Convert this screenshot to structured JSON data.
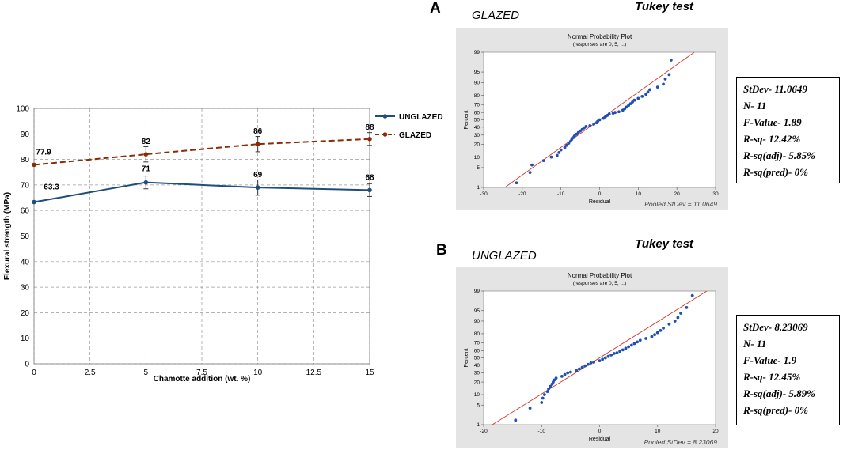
{
  "chart_data": [
    {
      "type": "line",
      "title": "",
      "xlabel": "Chamotte addition (wt. %)",
      "ylabel": "Flexural strength (MPa)",
      "xlim": [
        0,
        15
      ],
      "ylim": [
        0,
        100
      ],
      "xticks": [
        "0",
        "2.5",
        "5",
        "7.5",
        "10",
        "12.5",
        "15"
      ],
      "yticks": [
        "0",
        "10",
        "20",
        "30",
        "40",
        "50",
        "60",
        "70",
        "80",
        "90",
        "100"
      ],
      "grid": true,
      "legend": "top-right outside",
      "x": [
        0,
        5,
        10,
        15
      ],
      "series": [
        {
          "name": "UNGLAZED",
          "color": "#1f4e79",
          "style": "solid",
          "values": [
            63.3,
            71,
            69,
            68
          ],
          "errors": [
            0,
            2.5,
            3,
            2.5
          ],
          "labels": [
            "63.3",
            "71",
            "69",
            "68"
          ]
        },
        {
          "name": "GLAZED",
          "color": "#8b2a06",
          "style": "dashed",
          "values": [
            77.9,
            82,
            86,
            88
          ],
          "errors": [
            0,
            3,
            3,
            2.5
          ],
          "labels": [
            "77.9",
            "82",
            "86",
            "88"
          ]
        }
      ]
    },
    {
      "type": "scatter",
      "panel": "A",
      "panel_title": "GLAZED",
      "test_label": "Tukey test",
      "title": "Normal Probability Plot",
      "subtitle": "(responses are 0, 5, ...)",
      "xlabel": "Residual",
      "ylabel": "Percent",
      "xlim": [
        -30,
        30
      ],
      "xticks": [
        "-30",
        "-20",
        "-10",
        "0",
        "10",
        "20",
        "30"
      ],
      "yticks": [
        "1",
        "5",
        "10",
        "20",
        "30",
        "40",
        "50",
        "60",
        "70",
        "80",
        "90",
        "95",
        "99"
      ],
      "footer": "Pooled StDev = 11.0649",
      "fit_line": {
        "x0": -24.5,
        "x1": 24.5
      },
      "points": [
        [
          -21.5,
          1.5
        ],
        [
          -18,
          3.5
        ],
        [
          -17.5,
          6
        ],
        [
          -14.5,
          8
        ],
        [
          -12.5,
          10
        ],
        [
          -11,
          11
        ],
        [
          -10.5,
          13
        ],
        [
          -10,
          15
        ],
        [
          -9,
          17
        ],
        [
          -8.5,
          19
        ],
        [
          -8,
          21
        ],
        [
          -7.5,
          23
        ],
        [
          -7.2,
          25
        ],
        [
          -6.8,
          27
        ],
        [
          -6.5,
          29
        ],
        [
          -6,
          31
        ],
        [
          -5.5,
          33
        ],
        [
          -5,
          35
        ],
        [
          -4.5,
          37
        ],
        [
          -4,
          39
        ],
        [
          -3.5,
          41
        ],
        [
          -2.5,
          42
        ],
        [
          -1.5,
          44
        ],
        [
          -0.8,
          46
        ],
        [
          -0.5,
          48
        ],
        [
          0,
          50
        ],
        [
          1,
          52
        ],
        [
          1.5,
          54
        ],
        [
          2,
          56
        ],
        [
          2.5,
          58
        ],
        [
          3.5,
          59
        ],
        [
          4,
          60
        ],
        [
          5,
          61
        ],
        [
          6,
          63
        ],
        [
          6.5,
          65
        ],
        [
          7,
          67
        ],
        [
          7.5,
          69
        ],
        [
          8,
          71
        ],
        [
          8.5,
          73
        ],
        [
          9,
          75
        ],
        [
          10,
          77
        ],
        [
          11,
          79
        ],
        [
          12,
          81
        ],
        [
          12.5,
          83
        ],
        [
          13,
          85
        ],
        [
          15,
          87
        ],
        [
          16.5,
          89
        ],
        [
          17,
          92
        ],
        [
          18,
          94
        ],
        [
          18.5,
          98
        ]
      ],
      "stats": [
        "StDev- 11.0649",
        "N- 11",
        "F-Value- 1.89",
        "R-sq- 12.42%",
        "R-sq(adj)- 5.85%",
        "R-sq(pred)- 0%"
      ]
    },
    {
      "type": "scatter",
      "panel": "B",
      "panel_title": "UNGLAZED",
      "test_label": "Tukey test",
      "title": "Normal Probability Plot",
      "subtitle": "(responses are 0, 5, ...)",
      "xlabel": "Residual",
      "ylabel": "Percent",
      "xlim": [
        -20,
        20
      ],
      "xticks": [
        "-20",
        "-10",
        "0",
        "10",
        "20"
      ],
      "yticks": [
        "1",
        "5",
        "10",
        "20",
        "30",
        "40",
        "50",
        "60",
        "70",
        "80",
        "90",
        "95",
        "99"
      ],
      "footer": "Pooled StDev = 8.23069",
      "fit_line": {
        "x0": -18.5,
        "x1": 18.5
      },
      "points": [
        [
          -14.5,
          1.5
        ],
        [
          -12,
          4
        ],
        [
          -10,
          6
        ],
        [
          -9.8,
          8
        ],
        [
          -9.5,
          10
        ],
        [
          -9,
          12
        ],
        [
          -8.8,
          14
        ],
        [
          -8.5,
          16
        ],
        [
          -8.2,
          18
        ],
        [
          -8,
          20
        ],
        [
          -7.8,
          22
        ],
        [
          -7.5,
          24
        ],
        [
          -6.5,
          26
        ],
        [
          -6,
          28
        ],
        [
          -5.5,
          30
        ],
        [
          -5,
          31
        ],
        [
          -4,
          33
        ],
        [
          -3.5,
          35
        ],
        [
          -3,
          37
        ],
        [
          -2.5,
          39
        ],
        [
          -2,
          41
        ],
        [
          -1.5,
          43
        ],
        [
          -1,
          44
        ],
        [
          0,
          46
        ],
        [
          0.5,
          48
        ],
        [
          1,
          50
        ],
        [
          1.5,
          52
        ],
        [
          2,
          54
        ],
        [
          2.5,
          56
        ],
        [
          3,
          57
        ],
        [
          3.5,
          59
        ],
        [
          4,
          61
        ],
        [
          4.5,
          63
        ],
        [
          5,
          65
        ],
        [
          5.5,
          67
        ],
        [
          6,
          69
        ],
        [
          6.5,
          71
        ],
        [
          7,
          73
        ],
        [
          8,
          75
        ],
        [
          9,
          77
        ],
        [
          9.5,
          79
        ],
        [
          10,
          81
        ],
        [
          10.5,
          83
        ],
        [
          11,
          85
        ],
        [
          12,
          88
        ],
        [
          13,
          90
        ],
        [
          13.5,
          92
        ],
        [
          14,
          94
        ],
        [
          15,
          96
        ],
        [
          16,
          98.5
        ]
      ],
      "stats": [
        "StDev- 8.23069",
        "N- 11",
        "F-Value- 1.9",
        "R-sq- 12.45%",
        "R-sq(adj)- 5.89%",
        "R-sq(pred)- 0%"
      ]
    }
  ]
}
